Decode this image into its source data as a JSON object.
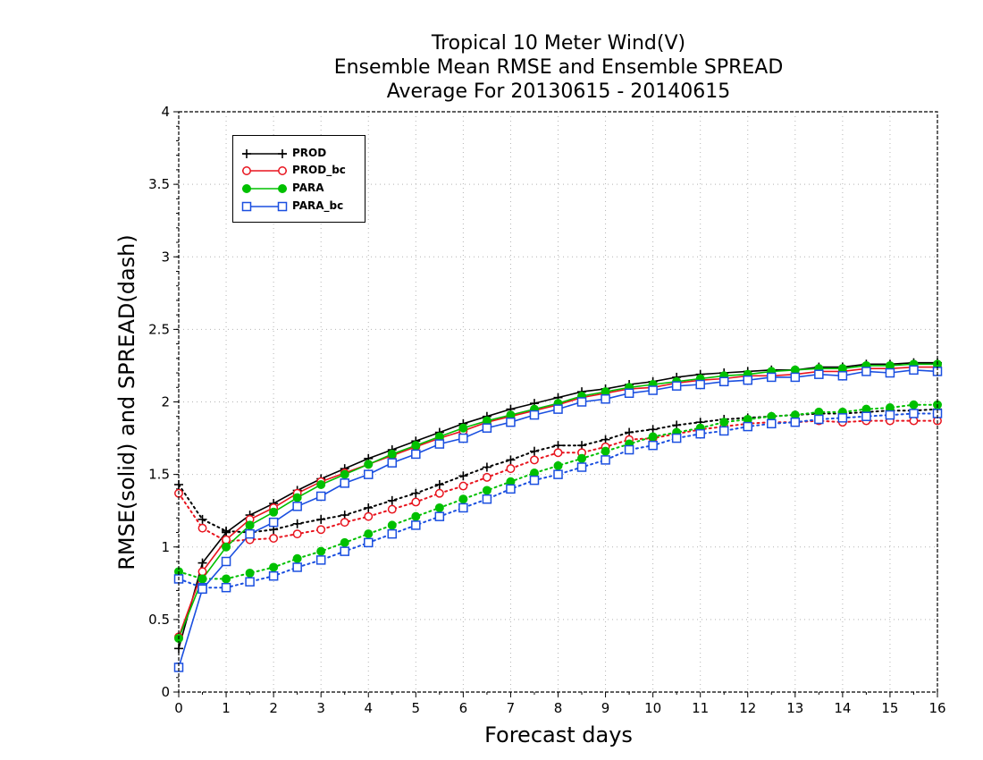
{
  "chart_data": {
    "type": "line",
    "title_lines": [
      "Tropical 10 Meter Wind(V)",
      "Ensemble Mean RMSE and Ensemble SPREAD",
      "Average For 20130615 - 20140615"
    ],
    "xlabel": "Forecast days",
    "ylabel": "RMSE(solid) and SPREAD(dash)",
    "xlim": [
      0,
      16
    ],
    "ylim": [
      0,
      4
    ],
    "x_ticks": [
      "0",
      "1",
      "2",
      "3",
      "4",
      "5",
      "6",
      "7",
      "8",
      "9",
      "10",
      "11",
      "12",
      "13",
      "14",
      "15",
      "16"
    ],
    "y_ticks": [
      "0",
      "0.5",
      "1",
      "1.5",
      "2",
      "2.5",
      "3",
      "3.5",
      "4"
    ],
    "grid": true,
    "legend_position": "top-left",
    "x": [
      0,
      0.5,
      1,
      1.5,
      2,
      2.5,
      3,
      3.5,
      4,
      4.5,
      5,
      5.5,
      6,
      6.5,
      7,
      7.5,
      8,
      8.5,
      9,
      9.5,
      10,
      10.5,
      11,
      11.5,
      12,
      12.5,
      13,
      13.5,
      14,
      14.5,
      15,
      15.5,
      16
    ],
    "series": [
      {
        "name": "PROD",
        "color": "#000000",
        "marker": "plus",
        "rmse": [
          0.3,
          0.89,
          1.1,
          1.22,
          1.3,
          1.39,
          1.47,
          1.54,
          1.61,
          1.67,
          1.73,
          1.79,
          1.85,
          1.9,
          1.95,
          1.99,
          2.03,
          2.07,
          2.09,
          2.12,
          2.14,
          2.17,
          2.19,
          2.2,
          2.21,
          2.22,
          2.22,
          2.24,
          2.24,
          2.26,
          2.26,
          2.27,
          2.27
        ],
        "spread": [
          1.43,
          1.19,
          1.11,
          1.1,
          1.12,
          1.16,
          1.19,
          1.22,
          1.27,
          1.32,
          1.37,
          1.43,
          1.49,
          1.55,
          1.6,
          1.66,
          1.7,
          1.7,
          1.74,
          1.79,
          1.81,
          1.84,
          1.86,
          1.88,
          1.89,
          1.9,
          1.91,
          1.92,
          1.92,
          1.93,
          1.94,
          1.94,
          1.95
        ]
      },
      {
        "name": "PROD_bc",
        "color": "#e8141e",
        "marker": "circle",
        "rmse": [
          0.38,
          0.83,
          1.05,
          1.19,
          1.27,
          1.37,
          1.45,
          1.51,
          1.57,
          1.63,
          1.69,
          1.75,
          1.8,
          1.86,
          1.9,
          1.94,
          1.98,
          2.03,
          2.06,
          2.09,
          2.1,
          2.13,
          2.15,
          2.16,
          2.18,
          2.18,
          2.19,
          2.21,
          2.21,
          2.23,
          2.23,
          2.24,
          2.24
        ],
        "spread": [
          1.37,
          1.13,
          1.04,
          1.05,
          1.06,
          1.09,
          1.12,
          1.17,
          1.21,
          1.26,
          1.31,
          1.37,
          1.42,
          1.48,
          1.54,
          1.6,
          1.65,
          1.65,
          1.69,
          1.74,
          1.75,
          1.78,
          1.81,
          1.83,
          1.85,
          1.86,
          1.86,
          1.87,
          1.86,
          1.87,
          1.87,
          1.87,
          1.87
        ]
      },
      {
        "name": "PARA",
        "color": "#00c000",
        "marker": "dot",
        "rmse": [
          0.37,
          0.78,
          1.0,
          1.15,
          1.24,
          1.34,
          1.43,
          1.5,
          1.57,
          1.64,
          1.7,
          1.76,
          1.82,
          1.87,
          1.91,
          1.95,
          1.99,
          2.04,
          2.07,
          2.1,
          2.12,
          2.14,
          2.16,
          2.18,
          2.19,
          2.21,
          2.22,
          2.23,
          2.23,
          2.25,
          2.25,
          2.26,
          2.26
        ],
        "spread": [
          0.83,
          0.78,
          0.78,
          0.82,
          0.86,
          0.92,
          0.97,
          1.03,
          1.09,
          1.15,
          1.21,
          1.27,
          1.33,
          1.39,
          1.45,
          1.51,
          1.56,
          1.61,
          1.66,
          1.71,
          1.76,
          1.79,
          1.82,
          1.86,
          1.88,
          1.9,
          1.91,
          1.93,
          1.93,
          1.95,
          1.96,
          1.98,
          1.98
        ]
      },
      {
        "name": "PARA_bc",
        "color": "#1a4fe0",
        "marker": "square",
        "rmse": [
          0.17,
          0.71,
          0.9,
          1.09,
          1.17,
          1.28,
          1.35,
          1.44,
          1.5,
          1.58,
          1.64,
          1.71,
          1.75,
          1.82,
          1.86,
          1.91,
          1.95,
          2.0,
          2.02,
          2.06,
          2.08,
          2.11,
          2.12,
          2.14,
          2.15,
          2.17,
          2.17,
          2.19,
          2.18,
          2.21,
          2.2,
          2.22,
          2.21
        ],
        "spread": [
          0.78,
          0.72,
          0.72,
          0.76,
          0.8,
          0.86,
          0.91,
          0.97,
          1.03,
          1.09,
          1.15,
          1.21,
          1.27,
          1.33,
          1.4,
          1.46,
          1.5,
          1.55,
          1.6,
          1.67,
          1.7,
          1.75,
          1.78,
          1.8,
          1.83,
          1.85,
          1.86,
          1.88,
          1.89,
          1.9,
          1.91,
          1.92,
          1.92
        ]
      }
    ]
  }
}
